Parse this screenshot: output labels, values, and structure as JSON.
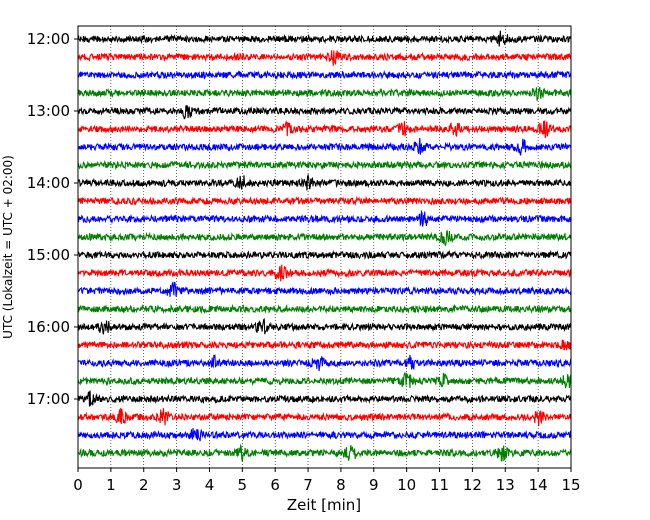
{
  "chart_data": {
    "type": "line",
    "title": "",
    "xlabel": "Zeit  [min]",
    "ylabel": "UTC (Lokalzeit = UTC + 02:00)",
    "xlim": [
      0,
      15
    ],
    "x_ticks": [
      0,
      1,
      2,
      3,
      4,
      5,
      6,
      7,
      8,
      9,
      10,
      11,
      12,
      13,
      14,
      15
    ],
    "grid": "vertical dotted",
    "legend": "none",
    "colors": [
      "#000000",
      "#ff0000",
      "#0000ff",
      "#008000"
    ],
    "trace_interval_min": 15,
    "traces": [
      {
        "start": "12:00",
        "color": "#000000",
        "events": [
          12.9
        ]
      },
      {
        "start": "12:15",
        "color": "#ff0000",
        "events": [
          7.8
        ]
      },
      {
        "start": "12:30",
        "color": "#0000ff",
        "events": []
      },
      {
        "start": "12:45",
        "color": "#008000",
        "events": [
          14.0
        ]
      },
      {
        "start": "13:00",
        "color": "#000000",
        "events": [
          3.3
        ]
      },
      {
        "start": "13:15",
        "color": "#ff0000",
        "events": [
          6.4,
          9.9,
          11.5,
          14.2
        ]
      },
      {
        "start": "13:30",
        "color": "#0000ff",
        "events": [
          10.4,
          13.5
        ]
      },
      {
        "start": "13:45",
        "color": "#008000",
        "events": []
      },
      {
        "start": "14:00",
        "color": "#000000",
        "events": [
          5.0,
          7.0
        ]
      },
      {
        "start": "14:15",
        "color": "#ff0000",
        "events": []
      },
      {
        "start": "14:30",
        "color": "#0000ff",
        "events": [
          10.5
        ]
      },
      {
        "start": "14:45",
        "color": "#008000",
        "events": [
          11.2
        ]
      },
      {
        "start": "15:00",
        "color": "#000000",
        "events": []
      },
      {
        "start": "15:15",
        "color": "#ff0000",
        "events": [
          6.2
        ]
      },
      {
        "start": "15:30",
        "color": "#0000ff",
        "events": [
          2.9
        ]
      },
      {
        "start": "15:45",
        "color": "#008000",
        "events": []
      },
      {
        "start": "16:00",
        "color": "#000000",
        "events": [
          0.8,
          5.6
        ]
      },
      {
        "start": "16:15",
        "color": "#ff0000",
        "events": [
          14.9
        ]
      },
      {
        "start": "16:30",
        "color": "#0000ff",
        "events": [
          4.1,
          7.3,
          10.1
        ]
      },
      {
        "start": "16:45",
        "color": "#008000",
        "events": [
          10.0,
          11.1,
          14.9
        ]
      },
      {
        "start": "17:00",
        "color": "#000000",
        "events": [
          0.4
        ]
      },
      {
        "start": "17:15",
        "color": "#ff0000",
        "events": [
          1.3,
          2.6,
          14.0
        ]
      },
      {
        "start": "17:30",
        "color": "#0000ff",
        "events": [
          3.6
        ]
      },
      {
        "start": "17:45",
        "color": "#008000",
        "events": [
          5.0,
          8.3,
          12.9
        ]
      }
    ],
    "y_tick_labels": [
      "12:00",
      "13:00",
      "14:00",
      "15:00",
      "16:00",
      "17:00"
    ]
  }
}
